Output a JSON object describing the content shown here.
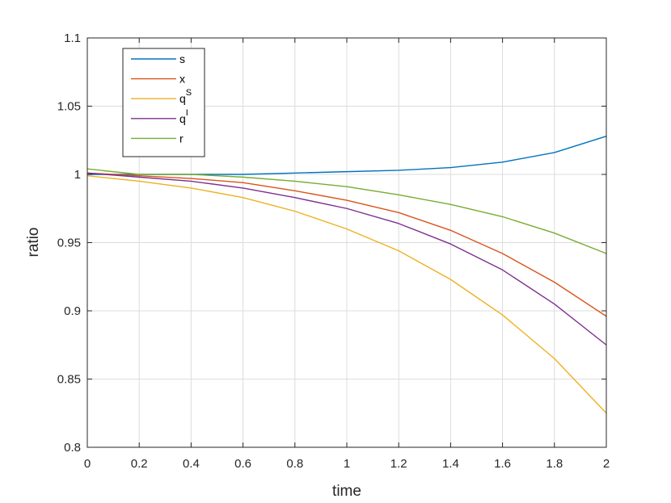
{
  "chart_data": {
    "type": "line",
    "title": "",
    "xlabel": "time",
    "ylabel": "ratio",
    "xlim": [
      0,
      2
    ],
    "ylim": [
      0.8,
      1.1
    ],
    "xticks": [
      0,
      0.2,
      0.4,
      0.6,
      0.8,
      1,
      1.2,
      1.4,
      1.6,
      1.8,
      2
    ],
    "xtick_labels": [
      "0",
      "0.2",
      "0.4",
      "0.6",
      "0.8",
      "1",
      "1.2",
      "1.4",
      "1.6",
      "1.8",
      "2"
    ],
    "yticks": [
      0.8,
      0.85,
      0.9,
      0.95,
      1,
      1.05,
      1.1
    ],
    "ytick_labels": [
      "0.8",
      "0.85",
      "0.9",
      "0.95",
      "1",
      "1.05",
      "1.1"
    ],
    "grid": true,
    "legend_position": "top-left",
    "x": [
      0,
      0.2,
      0.4,
      0.6,
      0.8,
      1.0,
      1.2,
      1.4,
      1.6,
      1.8,
      2.0
    ],
    "series": [
      {
        "name": "s",
        "label_base": "s",
        "label_sup": "",
        "color": "#0072BD",
        "values": [
          1.0,
          1.0,
          1.0,
          1.0,
          1.001,
          1.002,
          1.003,
          1.005,
          1.009,
          1.016,
          1.028
        ]
      },
      {
        "name": "x",
        "label_base": "x",
        "label_sup": "",
        "color": "#D95319",
        "values": [
          1.001,
          0.999,
          0.997,
          0.994,
          0.988,
          0.981,
          0.972,
          0.959,
          0.942,
          0.921,
          0.896
        ]
      },
      {
        "name": "qS",
        "label_base": "q",
        "label_sup": "S",
        "color": "#EDB120",
        "values": [
          0.999,
          0.995,
          0.99,
          0.983,
          0.973,
          0.96,
          0.944,
          0.923,
          0.897,
          0.865,
          0.825
        ]
      },
      {
        "name": "qI",
        "label_base": "q",
        "label_sup": "I",
        "color": "#7E2F8E",
        "values": [
          1.001,
          0.998,
          0.995,
          0.99,
          0.983,
          0.975,
          0.964,
          0.949,
          0.93,
          0.905,
          0.875
        ]
      },
      {
        "name": "r",
        "label_base": "r",
        "label_sup": "",
        "color": "#77AC30",
        "values": [
          1.004,
          1.0,
          1.0,
          0.998,
          0.995,
          0.991,
          0.985,
          0.978,
          0.969,
          0.957,
          0.942
        ]
      }
    ]
  }
}
